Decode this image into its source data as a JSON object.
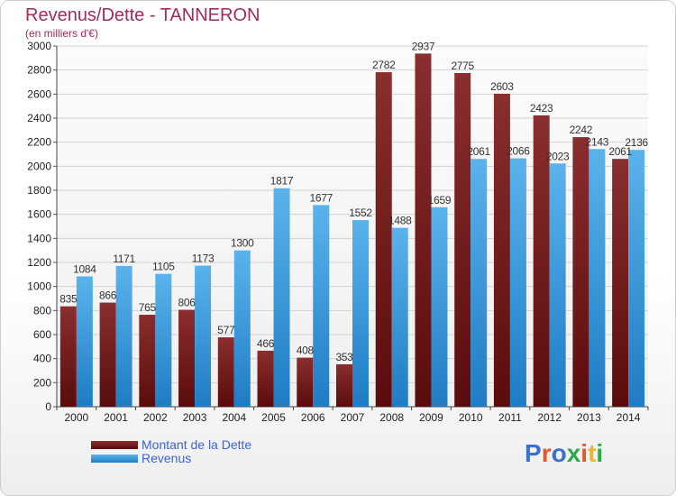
{
  "title": "Revenus/Dette - TANNERON",
  "subtitle": "(en milliers d'€)",
  "logo_text": "Proxiti",
  "colors": {
    "dette": "#7a1c1c",
    "revenus": "#2f8fd8",
    "title": "#a6295b",
    "legend_text": "#3b63d9",
    "logo": [
      "#3b6fd0",
      "#e2572b",
      "#3b6fd0",
      "#2da84a",
      "#e2572b",
      "#e9b82c",
      "#2da84a"
    ]
  },
  "chart_data": {
    "type": "bar",
    "title": "Revenus/Dette - TANNERON",
    "subtitle": "(en milliers d'€)",
    "xlabel": "",
    "ylabel": "",
    "ylim": [
      0,
      3000
    ],
    "yticks": [
      0,
      200,
      400,
      600,
      800,
      1000,
      1200,
      1400,
      1600,
      1800,
      2000,
      2200,
      2400,
      2600,
      2800,
      3000
    ],
    "grid": true,
    "legend_position": "bottom-left",
    "categories": [
      "2000",
      "2001",
      "2002",
      "2003",
      "2004",
      "2005",
      "2006",
      "2007",
      "2008",
      "2009",
      "2010",
      "2011",
      "2012",
      "2013",
      "2014"
    ],
    "series": [
      {
        "name": "Montant de la Dette",
        "values": [
          835,
          866,
          765,
          806,
          577,
          466,
          408,
          353,
          2782,
          2937,
          2775,
          2603,
          2423,
          2242,
          2061
        ]
      },
      {
        "name": "Revenus",
        "values": [
          1084,
          1171,
          1105,
          1173,
          1300,
          1817,
          1677,
          1552,
          1488,
          1659,
          2061,
          2066,
          2023,
          2143,
          2136
        ]
      }
    ]
  }
}
